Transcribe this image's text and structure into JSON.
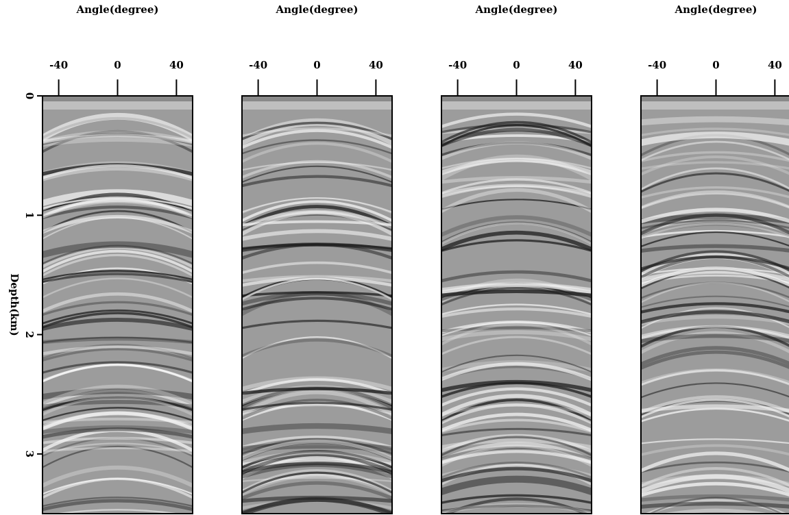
{
  "chart_data": [
    {
      "type": "image",
      "xlabel": "Angle(degree)",
      "xlim": [
        -51,
        51
      ],
      "xticks": [
        -40,
        0,
        40
      ],
      "ylabel": "Depth(km)",
      "ylim": [
        0,
        3.5
      ],
      "yticks": [
        0,
        1,
        2,
        3
      ]
    },
    {
      "type": "image",
      "xlabel": "Angle(degree)",
      "xlim": [
        -51,
        51
      ],
      "xticks": [
        -40,
        0,
        40
      ]
    },
    {
      "type": "image",
      "xlabel": "Angle(degree)",
      "xlim": [
        -51,
        51
      ],
      "xticks": [
        -40,
        0,
        40
      ]
    },
    {
      "type": "image",
      "xlabel": "Angle(degree)",
      "xlim": [
        -51,
        51
      ],
      "xticks": [
        -40,
        0,
        40
      ]
    }
  ]
}
